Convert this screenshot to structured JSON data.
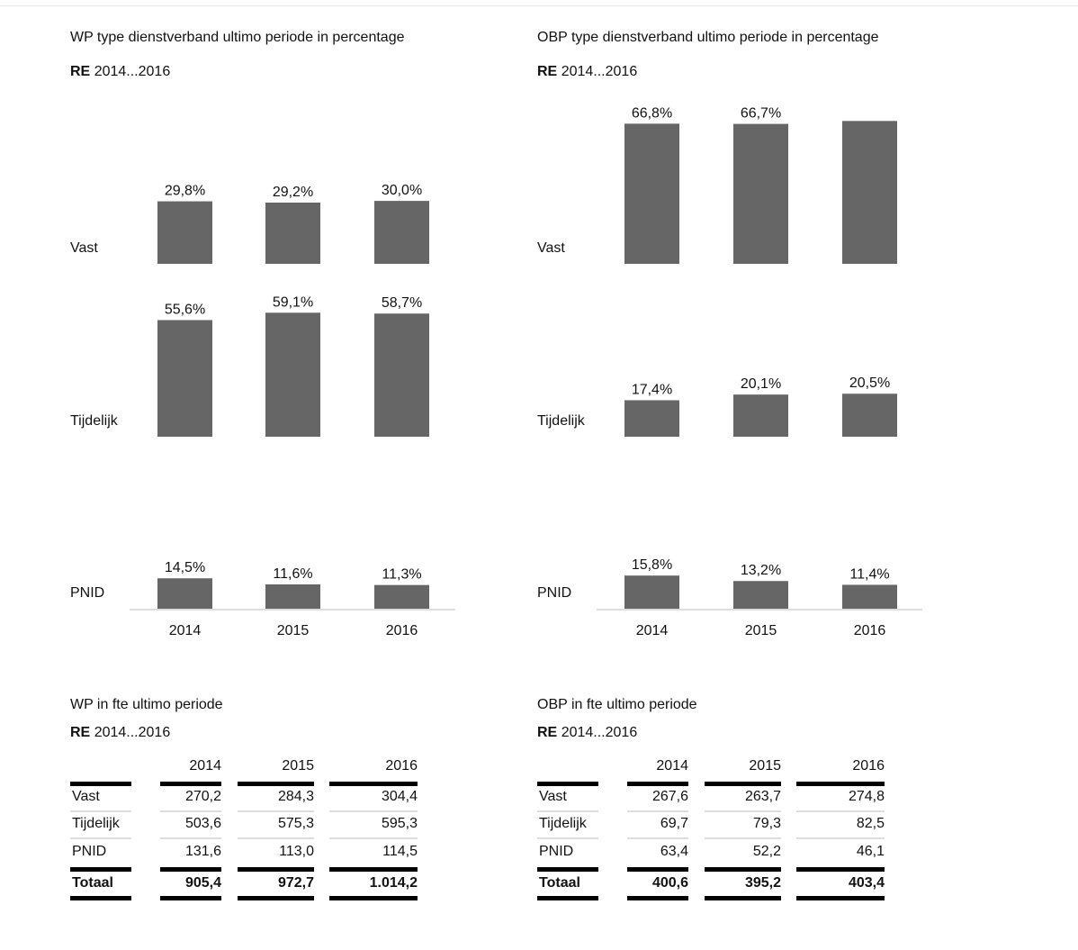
{
  "chart_data": [
    {
      "type": "bar",
      "title": "WP type dienstverband ultimo periode in percentage",
      "subtitle_bold": "RE",
      "subtitle_rest": "2014...2016",
      "categories": [
        "2014",
        "2015",
        "2016"
      ],
      "series": [
        {
          "name": "Vast",
          "values": [
            29.8,
            29.2,
            30.0
          ],
          "labels": [
            "29,8%",
            "29,2%",
            "30,0%"
          ]
        },
        {
          "name": "Tijdelijk",
          "values": [
            55.6,
            59.1,
            58.7
          ],
          "labels": [
            "55,6%",
            "59,1%",
            "58,7%"
          ]
        },
        {
          "name": "PNID",
          "values": [
            14.5,
            11.6,
            11.3
          ],
          "labels": [
            "14,5%",
            "11,6%",
            "11,3%"
          ]
        }
      ],
      "bar_color": "#666666"
    },
    {
      "type": "bar",
      "title": "OBP type dienstverband ultimo periode in percentage",
      "subtitle_bold": "RE",
      "subtitle_rest": "2014...2016",
      "categories": [
        "2014",
        "2015",
        "2016"
      ],
      "series": [
        {
          "name": "Vast",
          "values": [
            66.8,
            66.7,
            68.1
          ],
          "labels": [
            "66,8%",
            "66,7%",
            ""
          ]
        },
        {
          "name": "Tijdelijk",
          "values": [
            17.4,
            20.1,
            20.5
          ],
          "labels": [
            "17,4%",
            "20,1%",
            "20,5%"
          ]
        },
        {
          "name": "PNID",
          "values": [
            15.8,
            13.2,
            11.4
          ],
          "labels": [
            "15,8%",
            "13,2%",
            "11,4%"
          ]
        }
      ],
      "bar_color": "#666666"
    },
    {
      "type": "table",
      "title": "WP in fte ultimo periode",
      "subtitle_bold": "RE",
      "subtitle_rest": "2014...2016",
      "columns": [
        "2014",
        "2015",
        "2016"
      ],
      "rows": [
        {
          "label": "Vast",
          "values": [
            "270,2",
            "284,3",
            "304,4"
          ]
        },
        {
          "label": "Tijdelijk",
          "values": [
            "503,6",
            "575,3",
            "595,3"
          ]
        },
        {
          "label": "PNID",
          "values": [
            "131,6",
            "113,0",
            "114,5"
          ]
        },
        {
          "label": "Totaal",
          "values": [
            "905,4",
            "972,7",
            "1.014,2"
          ],
          "bold": true
        }
      ]
    },
    {
      "type": "table",
      "title": "OBP in fte ultimo periode",
      "subtitle_bold": "RE",
      "subtitle_rest": "2014...2016",
      "columns": [
        "2014",
        "2015",
        "2016"
      ],
      "rows": [
        {
          "label": "Vast",
          "values": [
            "267,6",
            "263,7",
            "274,8"
          ]
        },
        {
          "label": "Tijdelijk",
          "values": [
            "69,7",
            "79,3",
            "82,5"
          ]
        },
        {
          "label": "PNID",
          "values": [
            "63,4",
            "52,2",
            "46,1"
          ]
        },
        {
          "label": "Totaal",
          "values": [
            "400,6",
            "395,2",
            "403,4"
          ],
          "bold": true
        }
      ]
    }
  ]
}
